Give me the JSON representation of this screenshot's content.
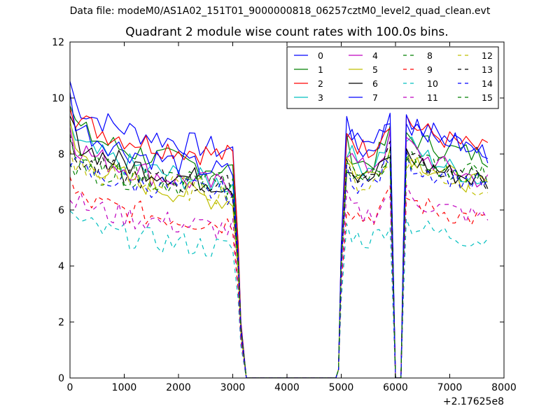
{
  "chart_data": {
    "type": "line",
    "suptitle": "Data file: modeM0/AS1A02_151T01_9000000818_06257cztM0_level2_quad_clean.evt",
    "title": "Quadrant 2 module wise count rates with 100.0s bins.",
    "xlabel": "",
    "ylabel": "",
    "x_offset_label": "+2.17625e8",
    "xlim": [
      0,
      8000
    ],
    "ylim": [
      0,
      12
    ],
    "xticks": [
      0,
      1000,
      2000,
      3000,
      4000,
      5000,
      6000,
      7000,
      8000
    ],
    "yticks": [
      0,
      2,
      4,
      6,
      8,
      10,
      12
    ],
    "xtick_labels": [
      "0",
      "1000",
      "2000",
      "3000",
      "4000",
      "5000",
      "6000",
      "7000",
      "8000"
    ],
    "ytick_labels": [
      "0",
      "2",
      "4",
      "6",
      "8",
      "10",
      "12"
    ],
    "legend_position": "top-right",
    "bin_seconds": 100,
    "segments": [
      {
        "start": 0,
        "end": 3000,
        "drop_end": 3300
      },
      {
        "start": 5000,
        "end": 5900,
        "drop_end": 6000
      },
      {
        "start": 6200,
        "end": 7700
      }
    ],
    "series": [
      {
        "name": "0",
        "color": "#0000ff",
        "dash": "solid",
        "levels": [
          10.6,
          8.1,
          9.2,
          8.2
        ]
      },
      {
        "name": "1",
        "color": "#008000",
        "dash": "solid",
        "levels": [
          9.8,
          7.4,
          8.7,
          7.9
        ]
      },
      {
        "name": "2",
        "color": "#ff0000",
        "dash": "solid",
        "levels": [
          10.0,
          7.9,
          9.3,
          8.1
        ]
      },
      {
        "name": "3",
        "color": "#00bfbf",
        "dash": "solid",
        "levels": [
          9.2,
          6.9,
          8.6,
          7.0
        ]
      },
      {
        "name": "4",
        "color": "#bf00bf",
        "dash": "solid",
        "levels": [
          9.1,
          6.8,
          8.5,
          7.0
        ]
      },
      {
        "name": "5",
        "color": "#bfbf00",
        "dash": "solid",
        "levels": [
          9.0,
          6.3,
          8.2,
          6.8
        ]
      },
      {
        "name": "6",
        "color": "#000000",
        "dash": "solid",
        "levels": [
          9.3,
          6.9,
          8.0,
          7.0
        ]
      },
      {
        "name": "7",
        "color": "#0000ff",
        "dash": "solid",
        "levels": [
          10.0,
          7.3,
          9.5,
          8.0
        ]
      },
      {
        "name": "8",
        "color": "#008000",
        "dash": "dashed",
        "levels": [
          8.0,
          6.8,
          8.0,
          7.2
        ]
      },
      {
        "name": "9",
        "color": "#ff0000",
        "dash": "dashed",
        "levels": [
          7.0,
          5.5,
          6.5,
          5.6
        ]
      },
      {
        "name": "10",
        "color": "#00bfbf",
        "dash": "dashed",
        "levels": [
          6.1,
          4.6,
          5.6,
          4.9
        ]
      },
      {
        "name": "11",
        "color": "#bf00bf",
        "dash": "dashed",
        "levels": [
          6.8,
          5.3,
          6.6,
          5.7
        ]
      },
      {
        "name": "12",
        "color": "#bfbf00",
        "dash": "dashed",
        "levels": [
          8.1,
          6.6,
          7.8,
          6.8
        ]
      },
      {
        "name": "13",
        "color": "#000000",
        "dash": "dashed",
        "levels": [
          8.3,
          6.8,
          8.1,
          7.0
        ]
      },
      {
        "name": "14",
        "color": "#0000ff",
        "dash": "dashed",
        "levels": [
          7.9,
          6.6,
          7.8,
          6.9
        ]
      },
      {
        "name": "15",
        "color": "#008000",
        "dash": "dashed",
        "levels": [
          8.2,
          6.9,
          8.0,
          7.2
        ]
      }
    ]
  }
}
